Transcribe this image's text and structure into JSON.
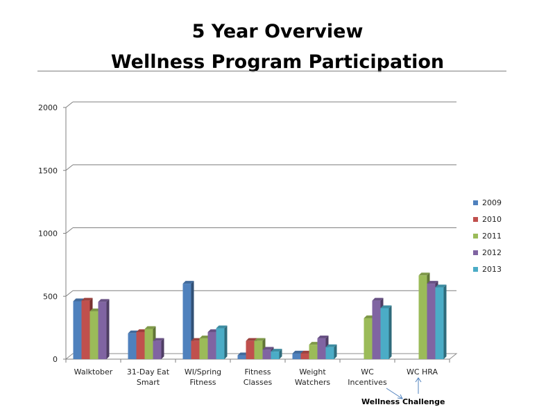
{
  "header": {
    "title_line1": "5 Year Overview",
    "title_line2": "Wellness Program Participation"
  },
  "annotation": "Wellness  Challenge",
  "chart_data": {
    "type": "bar",
    "title": "",
    "xlabel": "",
    "ylabel": "",
    "ylim": [
      0,
      2000
    ],
    "yticks": [
      0,
      500,
      1000,
      1500,
      2000
    ],
    "grid": true,
    "legend_position": "right",
    "categories": [
      [
        "Walktober"
      ],
      [
        "31-Day Eat",
        "Smart"
      ],
      [
        "WI/Spring",
        "Fitness"
      ],
      [
        "Fitness",
        "Classes"
      ],
      [
        "Weight",
        "Watchers"
      ],
      [
        "WC",
        "Incentives"
      ],
      [
        "WC HRA"
      ]
    ],
    "series": [
      {
        "name": "2009",
        "color": "#4f81bd",
        "values": [
          460,
          205,
          600,
          30,
          45,
          null,
          null
        ]
      },
      {
        "name": "2010",
        "color": "#c0504d",
        "values": [
          465,
          215,
          145,
          145,
          45,
          null,
          null
        ]
      },
      {
        "name": "2011",
        "color": "#9bbb59",
        "values": [
          380,
          240,
          165,
          145,
          115,
          325,
          665
        ]
      },
      {
        "name": "2012",
        "color": "#8064a2",
        "values": [
          455,
          145,
          215,
          75,
          165,
          465,
          600
        ]
      },
      {
        "name": "2013",
        "color": "#4bacc6",
        "values": [
          null,
          null,
          245,
          60,
          95,
          405,
          570
        ]
      }
    ]
  }
}
